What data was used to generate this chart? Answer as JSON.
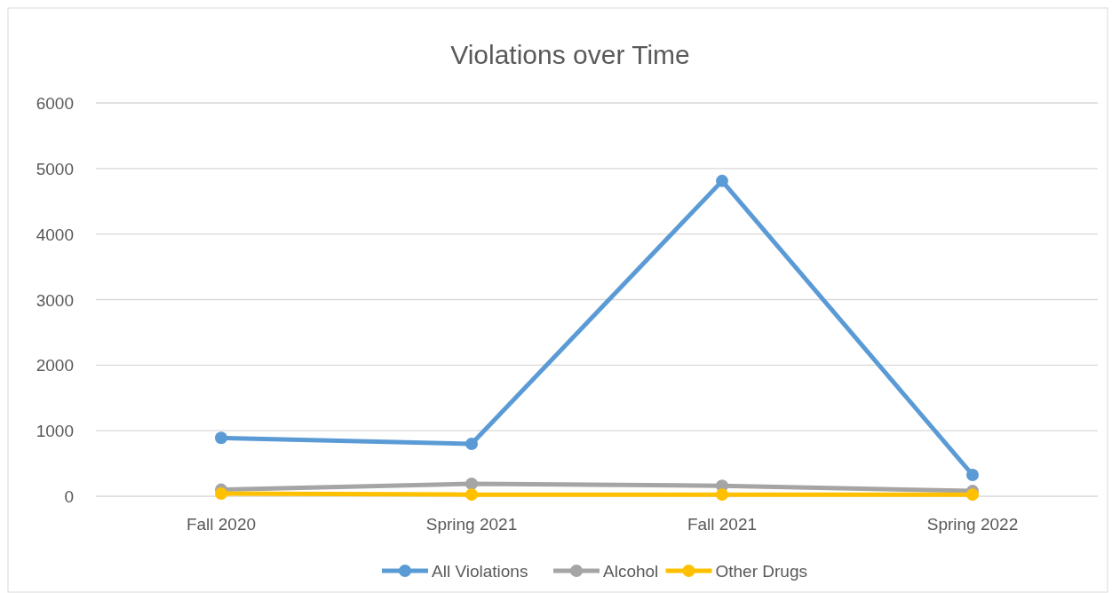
{
  "chart_data": {
    "type": "line",
    "title": "Violations over Time",
    "categories": [
      "Fall 2020",
      "Spring 2021",
      "Fall 2021",
      "Spring 2022"
    ],
    "series": [
      {
        "name": "All Violations",
        "color": "#5b9bd5",
        "values": [
          890,
          800,
          4810,
          325
        ]
      },
      {
        "name": "Alcohol",
        "color": "#a5a5a5",
        "values": [
          100,
          190,
          160,
          80
        ]
      },
      {
        "name": "Other Drugs",
        "color": "#ffc000",
        "values": [
          40,
          25,
          25,
          25
        ]
      }
    ],
    "ylim": [
      0,
      6000
    ],
    "yticks": [
      0,
      1000,
      2000,
      3000,
      4000,
      5000,
      6000
    ],
    "grid": "y",
    "legend": "bottom",
    "marker": "circle",
    "line_style": "solid"
  }
}
